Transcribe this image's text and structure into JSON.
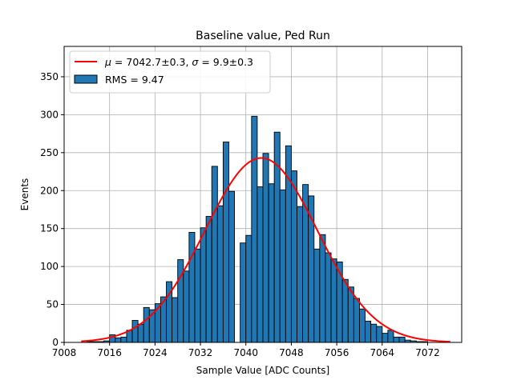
{
  "chart_data": {
    "type": "bar",
    "title": "Baseline value, Ped Run",
    "xlabel": "Sample Value [ADC Counts]",
    "ylabel": "Events",
    "xlim": [
      7008,
      7078
    ],
    "ylim": [
      0,
      390
    ],
    "xticks": [
      7008,
      7016,
      7024,
      7032,
      7040,
      7048,
      7056,
      7064,
      7072
    ],
    "yticks": [
      0,
      50,
      100,
      150,
      200,
      250,
      300,
      350
    ],
    "grid": true,
    "legend_position": "top-left",
    "colors": {
      "bar": "#1f77b4",
      "bar_edge": "#000000",
      "fit_line": "#ff0000",
      "grid": "#b0b0b0"
    },
    "histogram": {
      "name": "RMS = 9.47",
      "bin_width": 1,
      "bin_starts": [
        7012,
        7013,
        7014,
        7015,
        7016,
        7017,
        7018,
        7019,
        7020,
        7021,
        7022,
        7023,
        7024,
        7025,
        7026,
        7027,
        7028,
        7029,
        7030,
        7031,
        7032,
        7033,
        7034,
        7035,
        7036,
        7037,
        7038,
        7039,
        7040,
        7041,
        7042,
        7043,
        7044,
        7045,
        7046,
        7047,
        7048,
        7049,
        7050,
        7051,
        7052,
        7053,
        7054,
        7055,
        7056,
        7057,
        7058,
        7059,
        7060,
        7061,
        7062,
        7063,
        7064,
        7065,
        7066,
        7067,
        7068,
        7069,
        7070,
        7071,
        7072
      ],
      "counts": [
        1,
        1,
        1,
        2,
        10,
        6,
        7,
        16,
        29,
        24,
        46,
        43,
        51,
        60,
        80,
        59,
        109,
        94,
        145,
        123,
        151,
        166,
        232,
        180,
        264,
        199,
        0,
        131,
        141,
        298,
        205,
        249,
        209,
        277,
        201,
        259,
        226,
        179,
        208,
        193,
        123,
        142,
        118,
        110,
        106,
        83,
        73,
        58,
        44,
        28,
        24,
        21,
        12,
        16,
        7,
        7,
        3,
        2,
        1,
        1,
        0
      ]
    },
    "fit": {
      "name": "$\\mu=7042.7\\pm0.3$, $\\sigma=9.9\\pm0.3$",
      "label_mu_symbol": "μ",
      "label_mu_text": " = 7042.7±0.3, ",
      "label_sigma_symbol": "σ",
      "label_sigma_text": " = 9.9±0.3",
      "type": "gaussian",
      "mu": 7042.7,
      "sigma": 9.9,
      "amplitude": 243,
      "x_range": [
        7011,
        7076
      ]
    }
  }
}
